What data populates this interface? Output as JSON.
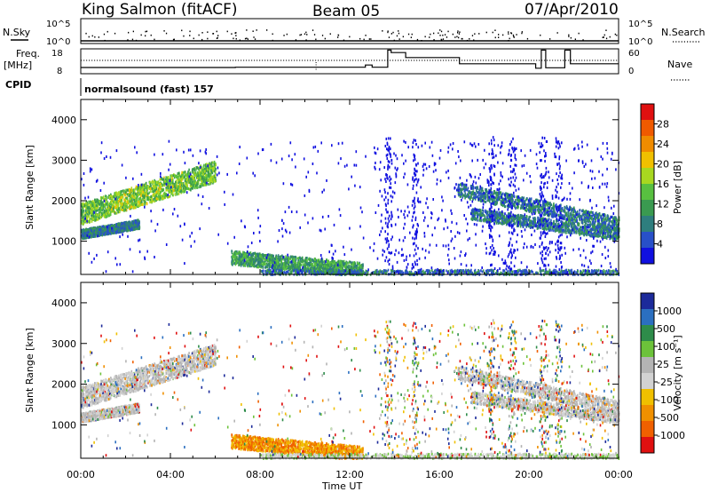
{
  "header": {
    "station": "King Salmon (fitACF)",
    "beam": "Beam 05",
    "date": "07/Apr/2010"
  },
  "nsky": {
    "label": "N.Sky",
    "ticks_left": [
      "10^5",
      "10^0"
    ],
    "ticks_right": [
      "10^5",
      "10^0"
    ],
    "right_label": "N.Search"
  },
  "freq": {
    "label_line1": "Freq.",
    "label_line2": "[MHz]",
    "ticks_left": [
      "18",
      "8"
    ],
    "ticks_right": [
      "60",
      "0"
    ],
    "right_label": "Nave"
  },
  "cpid": {
    "label": "CPID",
    "text": "normalsound (fast) 157"
  },
  "colors": {
    "power_scale": [
      "#1010e0",
      "#2850c8",
      "#2e7e7e",
      "#3a9a50",
      "#58c040",
      "#a8d820",
      "#f0c000",
      "#f08c00",
      "#f05a00",
      "#e01010"
    ],
    "velocity_scale": [
      "#1c2a9a",
      "#2b6fc0",
      "#2e8c4a",
      "#6cc23a",
      "#b4b4b4",
      "#d2d2d2",
      "#f0c000",
      "#f09000",
      "#f06000",
      "#e01010"
    ]
  },
  "chart_data": [
    {
      "type": "scatter",
      "panel": "N.Sky / N.Search",
      "x_range_hours": [
        0,
        24
      ],
      "y_ticks_left": [
        "10^5",
        "10^0"
      ],
      "y_ticks_right": [
        "10^5",
        "10^0"
      ]
    },
    {
      "type": "line",
      "panel": "Freq. / Nave",
      "x_range_hours": [
        0,
        24
      ],
      "ylim_left": [
        8,
        18
      ],
      "ylim_right": [
        0,
        60
      ],
      "freq_steps": [
        {
          "from": 0,
          "to": 6.9,
          "mhz": 10.5
        },
        {
          "from": 6.9,
          "to": 12.7,
          "mhz": 10.6
        },
        {
          "from": 12.7,
          "to": 13.0,
          "mhz": 11.5
        },
        {
          "from": 13.0,
          "to": 13.7,
          "mhz": 10.6
        },
        {
          "from": 13.7,
          "to": 13.85,
          "mhz": 17.5
        },
        {
          "from": 13.85,
          "to": 14.5,
          "mhz": 16.5
        },
        {
          "from": 14.5,
          "to": 16.9,
          "mhz": 14.5
        },
        {
          "from": 16.9,
          "to": 20.3,
          "mhz": 12.0
        },
        {
          "from": 20.3,
          "to": 20.55,
          "mhz": 10.2
        },
        {
          "from": 20.55,
          "to": 20.75,
          "mhz": 17.5
        },
        {
          "from": 20.75,
          "to": 21.6,
          "mhz": 10.4
        },
        {
          "from": 21.6,
          "to": 21.85,
          "mhz": 17.5
        },
        {
          "from": 21.85,
          "to": 24,
          "mhz": 12.0
        }
      ]
    },
    {
      "type": "heatmap",
      "panel": "Power",
      "ylabel": "Slant Range [km]",
      "y_range_km": [
        180,
        4500
      ],
      "y_ticks": [
        1000,
        2000,
        3000,
        4000
      ],
      "colorbar_label": "Power [dB]",
      "colorbar_ticks": [
        "4",
        "8",
        "12",
        "16",
        "20",
        "24",
        "28"
      ],
      "bands": [
        {
          "t0": 0.0,
          "t1": 6.0,
          "r0": 1700,
          "r1": 2750,
          "spread": 260,
          "level": 4
        },
        {
          "t0": 0.0,
          "t1": 2.6,
          "r0": 1200,
          "r1": 1450,
          "spread": 110,
          "level": 2
        },
        {
          "t0": 6.7,
          "t1": 12.6,
          "r0": 620,
          "r1": 320,
          "spread": 170,
          "level": 3
        },
        {
          "t0": 16.8,
          "t1": 24.0,
          "r0": 2300,
          "r1": 1450,
          "spread": 170,
          "level": 2
        },
        {
          "t0": 17.4,
          "t1": 24.0,
          "r0": 1700,
          "r1": 1200,
          "spread": 140,
          "level": 2
        }
      ]
    },
    {
      "type": "heatmap",
      "panel": "Velocity",
      "ylabel": "Slant Range [km]",
      "xlabel": "Time UT",
      "x_ticks": [
        "00:00",
        "04:00",
        "08:00",
        "12:00",
        "16:00",
        "20:00",
        "00:00"
      ],
      "y_range_km": [
        180,
        4500
      ],
      "y_ticks": [
        1000,
        2000,
        3000,
        4000
      ],
      "colorbar_label": "Velocity [m s⁻¹]",
      "colorbar_ticks": [
        "1000",
        "500",
        "100",
        "25",
        "-25",
        "-100",
        "-500",
        "-1000"
      ]
    }
  ]
}
